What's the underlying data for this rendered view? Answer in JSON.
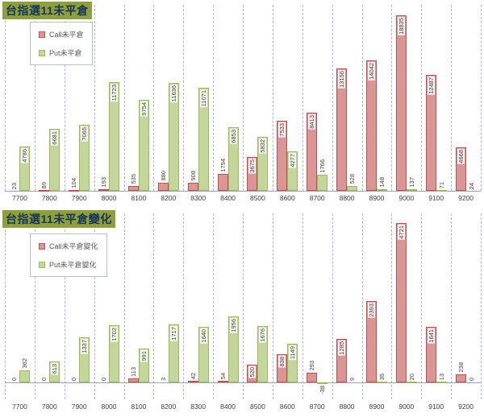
{
  "colors": {
    "call_fill": "#D99694",
    "call_border": "#C0504D",
    "put_fill": "#C3D69B",
    "put_border": "#9BBB59",
    "title_bg": "#8E9F3C",
    "title_text": "#17365D",
    "gridline": "#A8B6D2",
    "axis_line": "#9aa3ad",
    "label_text": "#3f3f3f"
  },
  "chart_data": [
    {
      "type": "bar",
      "title": "台指選11未平倉",
      "categories": [
        "7700",
        "7800",
        "7900",
        "8000",
        "8100",
        "8200",
        "8300",
        "8400",
        "8500",
        "8600",
        "8700",
        "8800",
        "8900",
        "9000",
        "9100",
        "9200"
      ],
      "series": [
        {
          "name": "Call未平倉",
          "values": [
            23,
            89,
            104,
            193,
            535,
            880,
            908,
            1794,
            3675,
            7533,
            8413,
            13156,
            14042,
            18835,
            12487,
            4668
          ]
        },
        {
          "name": "Put未平倉",
          "values": [
            4786,
            6681,
            7065,
            11723,
            9754,
            11636,
            11071,
            6853,
            5832,
            4277,
            1766,
            528,
            148,
            137,
            71,
            24
          ]
        }
      ],
      "ylim": [
        0,
        20000
      ],
      "grid": "vertical-dashed",
      "legend_position": "top-left",
      "data_labels": "vertical"
    },
    {
      "type": "bar",
      "title": "台指選11未平倉變化",
      "categories": [
        "7700",
        "7800",
        "7900",
        "8000",
        "8100",
        "8200",
        "8300",
        "8400",
        "8500",
        "8600",
        "8700",
        "8800",
        "8900",
        "9000",
        "9100",
        "9200"
      ],
      "series": [
        {
          "name": "Call未平倉變化",
          "values": [
            0,
            0,
            0,
            0,
            113,
            3,
            42,
            54,
            520,
            838,
            293,
            1285,
            2393,
            4721,
            1641,
            238
          ]
        },
        {
          "name": "Put未平倉變化",
          "values": [
            362,
            613,
            1337,
            1702,
            991,
            1717,
            1640,
            1956,
            1676,
            1149,
            -38,
            9,
            35,
            20,
            13,
            0
          ]
        }
      ],
      "ylim": [
        -500,
        5000
      ],
      "grid": "vertical-dashed",
      "legend_position": "top-left",
      "data_labels": "vertical"
    }
  ]
}
